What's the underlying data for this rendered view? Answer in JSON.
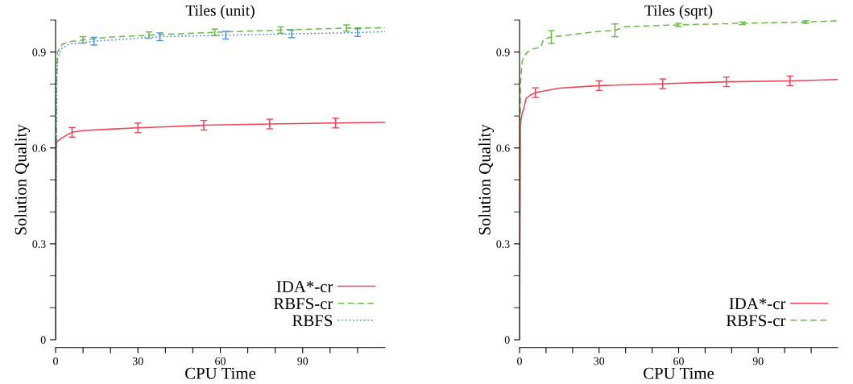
{
  "chart_data": [
    {
      "type": "line",
      "title": "Tiles (unit)",
      "xlabel": "CPU Time",
      "ylabel": "Solution Quality",
      "xlim": [
        0,
        120
      ],
      "ylim": [
        0,
        1.0
      ],
      "xticks": [
        0,
        {
          "value": 10,
          "label": null
        },
        {
          "value": 20,
          "label": null
        },
        30,
        {
          "value": 40,
          "label": null
        },
        {
          "value": 50,
          "label": null
        },
        60,
        {
          "value": 70,
          "label": null
        },
        {
          "value": 80,
          "label": null
        },
        90,
        {
          "value": 100,
          "label": null
        },
        {
          "value": 110,
          "label": null
        }
      ],
      "yticks": [
        0,
        {
          "value": 0.1,
          "label": null
        },
        {
          "value": 0.2,
          "label": null
        },
        0.3,
        {
          "value": 0.4,
          "label": null
        },
        {
          "value": 0.5,
          "label": null
        },
        0.6,
        {
          "value": 0.7,
          "label": null
        },
        {
          "value": 0.8,
          "label": null
        },
        0.9,
        {
          "value": 1.0,
          "label": null
        }
      ],
      "grid": false,
      "legend": "bottom right",
      "series": [
        {
          "name": "IDA*-cr",
          "color": "#ee4455",
          "line_style": "solid",
          "x": [
            0,
            0.2,
            0.5,
            2,
            4,
            6,
            10,
            20,
            30,
            40,
            54,
            78,
            102,
            120
          ],
          "values": [
            0,
            0.6,
            0.62,
            0.63,
            0.64,
            0.649,
            0.654,
            0.659,
            0.663,
            0.666,
            0.671,
            0.675,
            0.678,
            0.68
          ],
          "errors": [
            null,
            null,
            null,
            null,
            null,
            0.015,
            null,
            null,
            0.015,
            null,
            0.015,
            0.015,
            0.015,
            null
          ]
        },
        {
          "name": "RBFS-cr",
          "color": "#66bb44",
          "line_style": "dashed",
          "x": [
            0,
            0.3,
            0.7,
            2.5,
            5,
            10,
            20,
            34,
            58,
            82,
            106,
            120
          ],
          "values": [
            0,
            0.8,
            0.9,
            0.925,
            0.932,
            0.938,
            0.947,
            0.953,
            0.962,
            0.969,
            0.975,
            0.976
          ],
          "errors": [
            null,
            null,
            null,
            null,
            null,
            0.01,
            null,
            0.01,
            0.01,
            0.01,
            0.01,
            null
          ]
        },
        {
          "name": "RBFS",
          "color": "#4a90d9",
          "line_style": "dotted",
          "x": [
            0,
            0.4,
            0.8,
            2,
            5,
            14,
            38,
            62,
            86,
            110,
            120
          ],
          "values": [
            0,
            0.8,
            0.88,
            0.91,
            0.925,
            0.934,
            0.948,
            0.953,
            0.957,
            0.961,
            0.964
          ],
          "errors": [
            null,
            null,
            null,
            null,
            null,
            0.012,
            0.012,
            0.012,
            0.012,
            0.012,
            null
          ]
        }
      ]
    },
    {
      "type": "line",
      "title": "Tiles (sqrt)",
      "xlabel": "CPU Time",
      "ylabel": "Solution Quality",
      "xlim": [
        0,
        120
      ],
      "ylim": [
        0,
        1.0
      ],
      "xticks": [
        0,
        {
          "value": 10,
          "label": null
        },
        {
          "value": 20,
          "label": null
        },
        30,
        {
          "value": 40,
          "label": null
        },
        {
          "value": 50,
          "label": null
        },
        60,
        {
          "value": 70,
          "label": null
        },
        {
          "value": 80,
          "label": null
        },
        90,
        {
          "value": 100,
          "label": null
        },
        {
          "value": 110,
          "label": null
        }
      ],
      "yticks": [
        0,
        {
          "value": 0.1,
          "label": null
        },
        {
          "value": 0.2,
          "label": null
        },
        0.3,
        {
          "value": 0.4,
          "label": null
        },
        {
          "value": 0.5,
          "label": null
        },
        0.6,
        {
          "value": 0.7,
          "label": null
        },
        {
          "value": 0.8,
          "label": null
        },
        0.9,
        {
          "value": 1.0,
          "label": null
        }
      ],
      "grid": false,
      "legend": "bottom right",
      "series": [
        {
          "name": "IDA*-cr",
          "color": "#ee4455",
          "line_style": "solid",
          "x": [
            0,
            0.3,
            1,
            1.5,
            2.5,
            4,
            6,
            15,
            30,
            54,
            78,
            102,
            120
          ],
          "values": [
            0,
            0.67,
            0.71,
            0.72,
            0.755,
            0.765,
            0.773,
            0.787,
            0.795,
            0.801,
            0.807,
            0.81,
            0.814
          ],
          "errors": [
            null,
            null,
            null,
            null,
            null,
            null,
            0.015,
            null,
            0.015,
            0.015,
            0.015,
            0.015,
            null
          ]
        },
        {
          "name": "RBFS-cr",
          "color": "#66bb44",
          "line_style": "dashed",
          "x": [
            0,
            0.3,
            0.6,
            1,
            2,
            3,
            5,
            8,
            9,
            12,
            20,
            30,
            36,
            40,
            60,
            84,
            108,
            120
          ],
          "values": [
            0,
            0.8,
            0.83,
            0.87,
            0.89,
            0.9,
            0.91,
            0.915,
            0.94,
            0.947,
            0.955,
            0.965,
            0.968,
            0.98,
            0.985,
            0.99,
            0.994,
            0.998
          ],
          "errors": [
            null,
            null,
            null,
            null,
            null,
            null,
            null,
            null,
            null,
            0.02,
            null,
            null,
            0.02,
            null,
            0.005,
            0.004,
            0.004,
            null
          ]
        }
      ]
    }
  ]
}
